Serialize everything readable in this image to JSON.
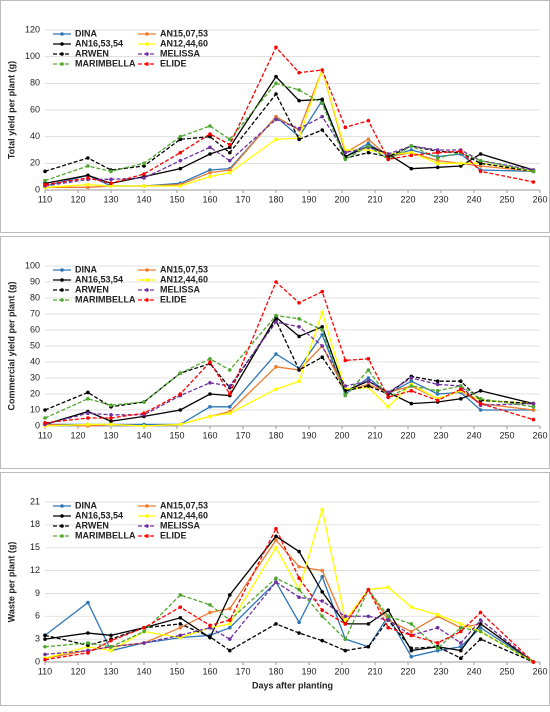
{
  "chart_data": [
    {
      "type": "line",
      "ylabel": "Total yield per plant (g)",
      "legend": "upper left",
      "grid": true,
      "x": [
        110,
        123,
        130,
        140,
        151,
        160,
        166,
        180,
        187,
        194,
        201,
        208,
        214,
        221,
        229,
        236,
        242,
        258
      ],
      "xlim": [
        110,
        260
      ],
      "xticks": [
        110,
        120,
        130,
        140,
        150,
        160,
        170,
        180,
        190,
        200,
        210,
        220,
        230,
        240,
        250,
        260
      ],
      "ylim": [
        0,
        120
      ],
      "yticks": [
        0,
        20,
        40,
        60,
        80,
        100,
        120
      ],
      "series": [
        {
          "name": "DINA",
          "color": "#2E75B6",
          "linestyle": "solid",
          "values": [
            3,
            11,
            3,
            3,
            5,
            15,
            16,
            55,
            40,
            67,
            25,
            35,
            25,
            30,
            25,
            27,
            15,
            14
          ]
        },
        {
          "name": "AN15,07,53",
          "color": "#ED7D31",
          "linestyle": "solid",
          "values": [
            2,
            2,
            3,
            3,
            4,
            13,
            15,
            55,
            45,
            90,
            28,
            38,
            25,
            28,
            22,
            20,
            18,
            14
          ]
        },
        {
          "name": "AN16,53,54",
          "color": "#000000",
          "linestyle": "solid",
          "values": [
            5,
            11,
            5,
            10,
            16,
            27,
            32,
            85,
            67,
            68,
            25,
            33,
            27,
            16,
            17,
            18,
            27,
            15
          ]
        },
        {
          "name": "AN12,44,60",
          "color": "#FFFF00",
          "linestyle": "solid",
          "values": [
            2,
            4,
            3,
            3,
            3,
            10,
            13,
            38,
            39,
            90,
            30,
            30,
            27,
            28,
            20,
            20,
            20,
            14
          ]
        },
        {
          "name": "ARWEN",
          "color": "#000000",
          "linestyle": "dashed",
          "values": [
            14,
            24,
            15,
            18,
            38,
            40,
            28,
            72,
            38,
            45,
            24,
            28,
            25,
            33,
            29,
            28,
            20,
            14
          ]
        },
        {
          "name": "MELISSA",
          "color": "#7030A0",
          "linestyle": "dashed",
          "values": [
            3,
            8,
            8,
            9,
            22,
            32,
            22,
            53,
            46,
            55,
            28,
            32,
            27,
            33,
            30,
            30,
            22,
            15
          ]
        },
        {
          "name": "MARIMBELLA",
          "color": "#4EA72E",
          "linestyle": "dashed",
          "values": [
            7,
            18,
            14,
            20,
            40,
            48,
            38,
            80,
            75,
            65,
            23,
            33,
            23,
            33,
            24,
            28,
            22,
            14
          ]
        },
        {
          "name": "ELIDE",
          "color": "#FF0000",
          "linestyle": "dashed",
          "values": [
            4,
            9,
            5,
            12,
            28,
            42,
            34,
            107,
            88,
            90,
            47,
            52,
            23,
            26,
            28,
            29,
            14,
            6
          ]
        }
      ]
    },
    {
      "type": "line",
      "ylabel": "Commercial yield per plant (g)",
      "legend": "upper left",
      "grid": true,
      "x": [
        110,
        123,
        130,
        140,
        151,
        160,
        166,
        180,
        187,
        194,
        201,
        208,
        214,
        221,
        229,
        236,
        242,
        258
      ],
      "xlim": [
        110,
        260
      ],
      "xticks": [
        110,
        120,
        130,
        140,
        150,
        160,
        170,
        180,
        190,
        200,
        210,
        220,
        230,
        240,
        250,
        260
      ],
      "ylim": [
        0,
        100
      ],
      "yticks": [
        0,
        10,
        20,
        30,
        40,
        50,
        60,
        70,
        80,
        90,
        100
      ],
      "series": [
        {
          "name": "DINA",
          "color": "#2E75B6",
          "linestyle": "solid",
          "values": [
            1,
            1,
            1,
            1,
            1,
            12,
            12,
            45,
            36,
            57,
            20,
            30,
            20,
            28,
            20,
            21,
            10,
            10
          ]
        },
        {
          "name": "AN15,07,53",
          "color": "#ED7D31",
          "linestyle": "solid",
          "values": [
            1,
            0,
            1,
            0,
            1,
            6,
            9,
            37,
            35,
            50,
            22,
            26,
            21,
            25,
            17,
            22,
            14,
            10
          ]
        },
        {
          "name": "AN16,53,54",
          "color": "#000000",
          "linestyle": "solid",
          "values": [
            1,
            9,
            3,
            6,
            10,
            20,
            19,
            68,
            56,
            62,
            22,
            28,
            21,
            14,
            15,
            17,
            22,
            14
          ]
        },
        {
          "name": "AN12,44,60",
          "color": "#FFFF00",
          "linestyle": "solid",
          "values": [
            0,
            1,
            1,
            0,
            1,
            6,
            8,
            23,
            28,
            71,
            23,
            24,
            12,
            26,
            17,
            22,
            16,
            14
          ]
        },
        {
          "name": "ARWEN",
          "color": "#000000",
          "linestyle": "dashed",
          "values": [
            10,
            21,
            12,
            15,
            33,
            39,
            24,
            66,
            35,
            43,
            22,
            25,
            20,
            31,
            28,
            28,
            16,
            14
          ]
        },
        {
          "name": "MELISSA",
          "color": "#7030A0",
          "linestyle": "dashed",
          "values": [
            1,
            8,
            7,
            7,
            19,
            27,
            25,
            65,
            62,
            50,
            25,
            28,
            21,
            30,
            26,
            25,
            13,
            14
          ]
        },
        {
          "name": "MARIMBELLA",
          "color": "#4EA72E",
          "linestyle": "dashed",
          "values": [
            5,
            17,
            13,
            15,
            33,
            42,
            35,
            69,
            67,
            60,
            19,
            35,
            18,
            25,
            22,
            25,
            17,
            12
          ]
        },
        {
          "name": "ELIDE",
          "color": "#FF0000",
          "linestyle": "dashed",
          "values": [
            2,
            5,
            5,
            8,
            20,
            40,
            20,
            90,
            77,
            84,
            41,
            42,
            18,
            22,
            16,
            23,
            14,
            4
          ]
        }
      ]
    },
    {
      "type": "line",
      "ylabel": "Waste per plant (g)",
      "xlabel": "Days after planting",
      "legend": "upper left",
      "grid": true,
      "x": [
        110,
        123,
        130,
        140,
        151,
        160,
        166,
        180,
        187,
        194,
        201,
        208,
        214,
        221,
        229,
        236,
        242,
        258
      ],
      "xlim": [
        110,
        260
      ],
      "xticks": [
        110,
        120,
        130,
        140,
        150,
        160,
        170,
        180,
        190,
        200,
        210,
        220,
        230,
        240,
        250,
        260
      ],
      "ylim": [
        0,
        21
      ],
      "yticks": [
        0,
        3,
        6,
        9,
        12,
        15,
        18,
        21
      ],
      "series": [
        {
          "name": "DINA",
          "color": "#2E75B6",
          "linestyle": "solid",
          "values": [
            3.5,
            7.8,
            1.5,
            2.5,
            3.2,
            3.5,
            4.5,
            10.5,
            5.2,
            11.2,
            3,
            2,
            6,
            0.7,
            1.5,
            2,
            4.5,
            0
          ]
        },
        {
          "name": "AN15,07,53",
          "color": "#ED7D31",
          "linestyle": "solid",
          "values": [
            0.5,
            1.5,
            2,
            2.5,
            4.5,
            6.5,
            7,
            16,
            12.5,
            12,
            5,
            9.5,
            5.5,
            4,
            6,
            4.5,
            5,
            0
          ]
        },
        {
          "name": "AN16,53,54",
          "color": "#000000",
          "linestyle": "solid",
          "values": [
            3,
            3.8,
            3.5,
            4.5,
            5.8,
            3.2,
            8.8,
            16.5,
            14.5,
            9.2,
            5,
            5,
            6.8,
            1.5,
            2,
            1.5,
            5,
            0
          ]
        },
        {
          "name": "AN12,44,60",
          "color": "#FFFF00",
          "linestyle": "solid",
          "values": [
            0.5,
            2,
            1.5,
            4,
            3.2,
            4.5,
            5,
            15,
            9.5,
            20,
            5.5,
            9.5,
            9.8,
            7.2,
            6.2,
            5,
            4,
            0
          ]
        },
        {
          "name": "ARWEN",
          "color": "#000000",
          "linestyle": "dashed",
          "values": [
            3.5,
            2.2,
            3,
            4.5,
            5,
            3.3,
            1.5,
            5,
            3.8,
            2.8,
            1.5,
            2,
            5.5,
            1.8,
            2,
            0.5,
            3,
            0
          ]
        },
        {
          "name": "MELISSA",
          "color": "#7030A0",
          "linestyle": "dashed",
          "values": [
            1,
            1.5,
            2,
            2.5,
            3.5,
            4.5,
            3,
            10.5,
            8.5,
            8,
            6,
            6,
            5.5,
            3.5,
            4.5,
            2.5,
            5.5,
            0
          ]
        },
        {
          "name": "MARIMBELLA",
          "color": "#4EA72E",
          "linestyle": "dashed",
          "values": [
            2,
            2.5,
            2,
            4,
            8.8,
            7.5,
            5.5,
            11,
            9.5,
            6,
            3,
            9.5,
            6,
            5,
            1.8,
            4.5,
            4,
            0
          ]
        },
        {
          "name": "ELIDE",
          "color": "#FF0000",
          "linestyle": "dashed",
          "values": [
            0.3,
            1.2,
            2.8,
            4.5,
            7.2,
            4.8,
            5.5,
            17.5,
            11,
            6.8,
            5,
            9.5,
            4.5,
            3.5,
            2.5,
            4,
            6.5,
            0
          ]
        }
      ]
    }
  ]
}
